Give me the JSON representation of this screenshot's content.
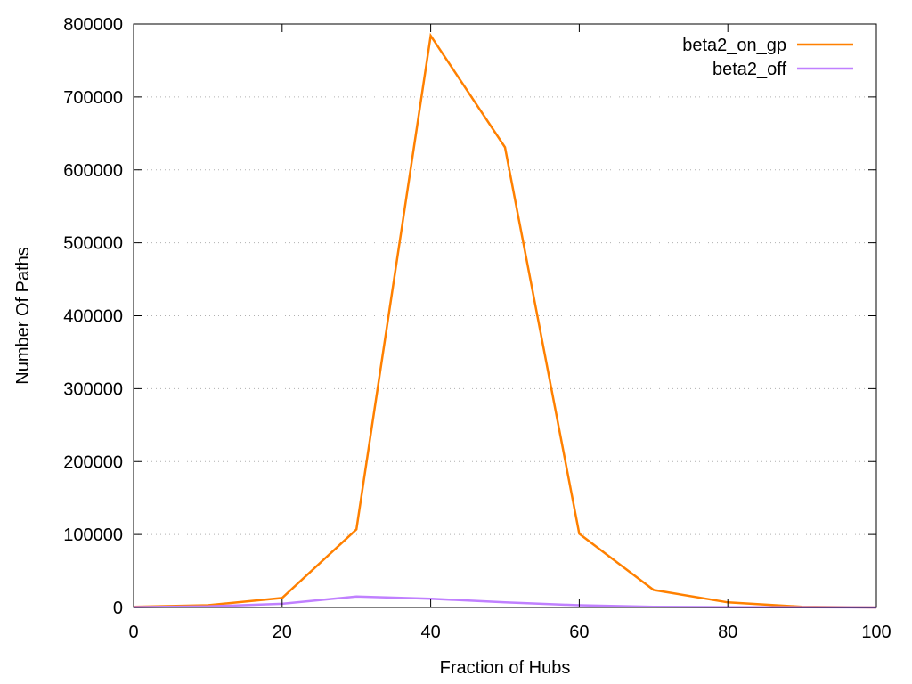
{
  "chart_data": {
    "type": "line",
    "title": "",
    "xlabel": "Fraction of Hubs",
    "ylabel": "Number Of Paths",
    "xlim": [
      0,
      100
    ],
    "ylim": [
      0,
      800000
    ],
    "xticks": [
      0,
      20,
      40,
      60,
      80,
      100
    ],
    "yticks": [
      0,
      100000,
      200000,
      300000,
      400000,
      500000,
      600000,
      700000,
      800000
    ],
    "grid": "horizontal",
    "legend_position": "top-right",
    "x": [
      0,
      10,
      20,
      30,
      40,
      50,
      60,
      70,
      80,
      90,
      100
    ],
    "series": [
      {
        "name": "beta2_on_gp",
        "color": "#ff8000",
        "values": [
          1000,
          3000,
          13000,
          107000,
          784000,
          631000,
          101000,
          24000,
          7000,
          1000,
          0
        ]
      },
      {
        "name": "beta2_off",
        "color": "#c080ff",
        "values": [
          500,
          1500,
          5000,
          15000,
          12000,
          7000,
          3000,
          1000,
          500,
          200,
          0
        ]
      }
    ]
  }
}
